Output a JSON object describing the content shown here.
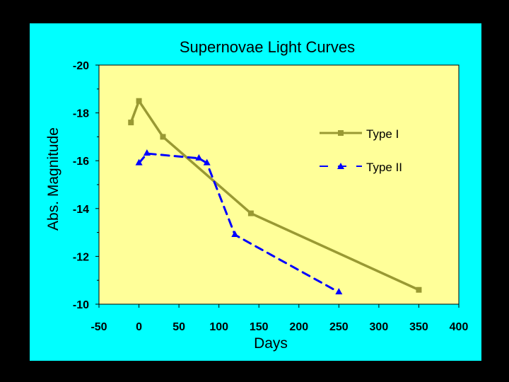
{
  "colors": {
    "outer_background": "#000000",
    "chart_background": "#00FFFF",
    "plot_background": "#FFFF99",
    "type_i": "#999933",
    "type_ii": "#0000FF"
  },
  "chart_data": {
    "type": "line",
    "title": "Supernovae Light Curves",
    "xlabel": "Days",
    "ylabel": "Abs. Magnitude",
    "xlim": [
      -50,
      400
    ],
    "ylim": [
      -20,
      -10
    ],
    "x_ticks": [
      -50,
      0,
      50,
      100,
      150,
      200,
      250,
      300,
      350,
      400
    ],
    "x_tick_labels": [
      "-50",
      "0",
      "50",
      "100",
      "150",
      "200",
      "250",
      "300",
      "350",
      "400"
    ],
    "y_ticks": [
      -20,
      -18,
      -16,
      -14,
      -12,
      -10
    ],
    "y_tick_labels": [
      "-20",
      "-18",
      "-16",
      "-14",
      "-12",
      "-10"
    ],
    "grid": false,
    "legend_position": "right",
    "series": [
      {
        "name": "Type I",
        "line_style": "solid",
        "marker": "square",
        "color": "#999933",
        "x": [
          -10,
          0,
          30,
          140,
          350
        ],
        "y": [
          -17.6,
          -18.5,
          -17.0,
          -13.8,
          -10.6
        ]
      },
      {
        "name": "Type II",
        "line_style": "dashed",
        "marker": "triangle",
        "color": "#0000FF",
        "x": [
          0,
          10,
          75,
          85,
          120,
          250
        ],
        "y": [
          -15.9,
          -16.3,
          -16.1,
          -15.9,
          -12.9,
          -10.5
        ]
      }
    ]
  }
}
